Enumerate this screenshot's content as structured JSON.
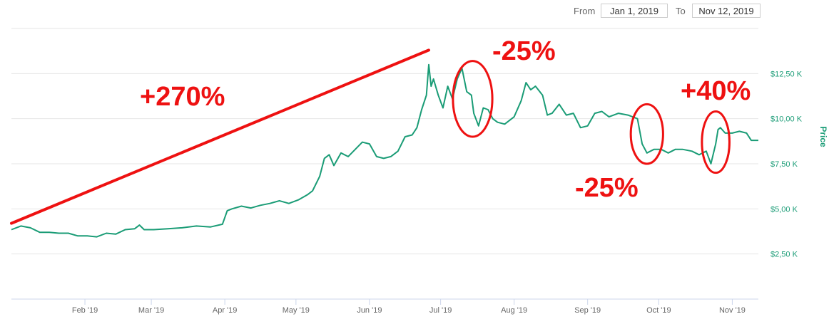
{
  "range": {
    "from_label": "From",
    "from_value": "Jan 1, 2019",
    "to_label": "To",
    "to_value": "Nov 12, 2019"
  },
  "colors": {
    "line": "#1a9c76",
    "annotation": "#ee1111",
    "grid": "#e6e6e6",
    "axis": "#ccd6eb"
  },
  "chart_data": {
    "type": "line",
    "title": "",
    "xlabel": "",
    "ylabel": "Price",
    "x_domain": [
      "2019-01-01",
      "2019-11-12"
    ],
    "ylim": [
      0,
      15000
    ],
    "grid": "horizontal",
    "y_ticks": [
      {
        "value": 2500,
        "label": "$2,50 K"
      },
      {
        "value": 5000,
        "label": "$5,00 K"
      },
      {
        "value": 7500,
        "label": "$7,50 K"
      },
      {
        "value": 10000,
        "label": "$10,00 K"
      },
      {
        "value": 12500,
        "label": "$12,50 K"
      }
    ],
    "x_ticks": [
      {
        "date": "2019-02-01",
        "label": "Feb '19"
      },
      {
        "date": "2019-03-01",
        "label": "Mar '19"
      },
      {
        "date": "2019-04-01",
        "label": "Apr '19"
      },
      {
        "date": "2019-05-01",
        "label": "May '19"
      },
      {
        "date": "2019-06-01",
        "label": "Jun '19"
      },
      {
        "date": "2019-07-01",
        "label": "Jul '19"
      },
      {
        "date": "2019-08-01",
        "label": "Aug '19"
      },
      {
        "date": "2019-09-01",
        "label": "Sep '19"
      },
      {
        "date": "2019-10-01",
        "label": "Oct '19"
      },
      {
        "date": "2019-11-01",
        "label": "Nov '19"
      }
    ],
    "series": [
      {
        "values": [
          [
            "2019-01-01",
            3850
          ],
          [
            "2019-01-05",
            4050
          ],
          [
            "2019-01-09",
            3950
          ],
          [
            "2019-01-13",
            3700
          ],
          [
            "2019-01-17",
            3700
          ],
          [
            "2019-01-21",
            3650
          ],
          [
            "2019-01-25",
            3650
          ],
          [
            "2019-01-29",
            3500
          ],
          [
            "2019-02-02",
            3500
          ],
          [
            "2019-02-06",
            3450
          ],
          [
            "2019-02-10",
            3650
          ],
          [
            "2019-02-14",
            3600
          ],
          [
            "2019-02-18",
            3850
          ],
          [
            "2019-02-22",
            3900
          ],
          [
            "2019-02-24",
            4100
          ],
          [
            "2019-02-26",
            3850
          ],
          [
            "2019-03-02",
            3850
          ],
          [
            "2019-03-08",
            3900
          ],
          [
            "2019-03-14",
            3950
          ],
          [
            "2019-03-20",
            4050
          ],
          [
            "2019-03-26",
            4000
          ],
          [
            "2019-03-31",
            4150
          ],
          [
            "2019-04-02",
            4900
          ],
          [
            "2019-04-04",
            5000
          ],
          [
            "2019-04-08",
            5150
          ],
          [
            "2019-04-12",
            5050
          ],
          [
            "2019-04-16",
            5200
          ],
          [
            "2019-04-20",
            5300
          ],
          [
            "2019-04-24",
            5450
          ],
          [
            "2019-04-28",
            5300
          ],
          [
            "2019-05-02",
            5500
          ],
          [
            "2019-05-06",
            5800
          ],
          [
            "2019-05-08",
            6000
          ],
          [
            "2019-05-11",
            6800
          ],
          [
            "2019-05-13",
            7800
          ],
          [
            "2019-05-15",
            8000
          ],
          [
            "2019-05-17",
            7400
          ],
          [
            "2019-05-20",
            8100
          ],
          [
            "2019-05-23",
            7900
          ],
          [
            "2019-05-26",
            8300
          ],
          [
            "2019-05-29",
            8700
          ],
          [
            "2019-06-01",
            8600
          ],
          [
            "2019-06-04",
            7900
          ],
          [
            "2019-06-07",
            7800
          ],
          [
            "2019-06-10",
            7900
          ],
          [
            "2019-06-13",
            8200
          ],
          [
            "2019-06-16",
            9000
          ],
          [
            "2019-06-19",
            9100
          ],
          [
            "2019-06-21",
            9500
          ],
          [
            "2019-06-23",
            10500
          ],
          [
            "2019-06-25",
            11300
          ],
          [
            "2019-06-26",
            13000
          ],
          [
            "2019-06-27",
            11800
          ],
          [
            "2019-06-28",
            12200
          ],
          [
            "2019-06-30",
            11300
          ],
          [
            "2019-07-02",
            10600
          ],
          [
            "2019-07-04",
            11800
          ],
          [
            "2019-07-06",
            11100
          ],
          [
            "2019-07-08",
            12200
          ],
          [
            "2019-07-10",
            12800
          ],
          [
            "2019-07-12",
            11500
          ],
          [
            "2019-07-14",
            11300
          ],
          [
            "2019-07-15",
            10300
          ],
          [
            "2019-07-17",
            9600
          ],
          [
            "2019-07-19",
            10600
          ],
          [
            "2019-07-21",
            10500
          ],
          [
            "2019-07-23",
            10000
          ],
          [
            "2019-07-25",
            9800
          ],
          [
            "2019-07-28",
            9700
          ],
          [
            "2019-08-01",
            10100
          ],
          [
            "2019-08-04",
            11000
          ],
          [
            "2019-08-06",
            12000
          ],
          [
            "2019-08-08",
            11600
          ],
          [
            "2019-08-10",
            11800
          ],
          [
            "2019-08-13",
            11300
          ],
          [
            "2019-08-15",
            10200
          ],
          [
            "2019-08-17",
            10300
          ],
          [
            "2019-08-20",
            10800
          ],
          [
            "2019-08-23",
            10200
          ],
          [
            "2019-08-26",
            10300
          ],
          [
            "2019-08-29",
            9500
          ],
          [
            "2019-09-01",
            9600
          ],
          [
            "2019-09-04",
            10300
          ],
          [
            "2019-09-07",
            10400
          ],
          [
            "2019-09-10",
            10100
          ],
          [
            "2019-09-14",
            10300
          ],
          [
            "2019-09-18",
            10200
          ],
          [
            "2019-09-22",
            10000
          ],
          [
            "2019-09-24",
            8600
          ],
          [
            "2019-09-26",
            8100
          ],
          [
            "2019-09-29",
            8300
          ],
          [
            "2019-10-02",
            8300
          ],
          [
            "2019-10-05",
            8100
          ],
          [
            "2019-10-08",
            8300
          ],
          [
            "2019-10-11",
            8300
          ],
          [
            "2019-10-15",
            8200
          ],
          [
            "2019-10-18",
            8000
          ],
          [
            "2019-10-21",
            8200
          ],
          [
            "2019-10-23",
            7500
          ],
          [
            "2019-10-25",
            8600
          ],
          [
            "2019-10-26",
            9400
          ],
          [
            "2019-10-27",
            9500
          ],
          [
            "2019-10-29",
            9200
          ],
          [
            "2019-11-01",
            9200
          ],
          [
            "2019-11-04",
            9300
          ],
          [
            "2019-11-07",
            9200
          ],
          [
            "2019-11-09",
            8800
          ],
          [
            "2019-11-12",
            8800
          ]
        ]
      }
    ],
    "annotations": [
      {
        "text": "+270%",
        "type": "line",
        "from": [
          "2019-01-01",
          4200
        ],
        "to": [
          "2019-06-26",
          13800
        ]
      },
      {
        "text": "-25%",
        "type": "circle",
        "date_from": "2019-07-08",
        "date_to": "2019-07-21",
        "value_low": 9000,
        "value_high": 13200
      },
      {
        "text": "-25%",
        "type": "circle",
        "date_from": "2019-09-21",
        "date_to": "2019-10-01",
        "value_low": 7500,
        "value_high": 10800
      },
      {
        "text": "+40%",
        "type": "circle",
        "date_from": "2019-10-21",
        "date_to": "2019-10-29",
        "value_low": 7000,
        "value_high": 10400
      }
    ]
  }
}
